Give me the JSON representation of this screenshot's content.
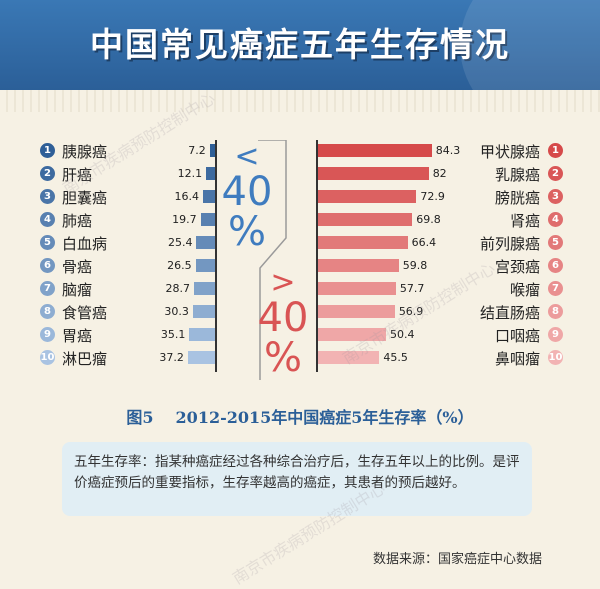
{
  "title": "中国常见癌症五年生存情况",
  "low_label": {
    "symbol": "<",
    "value": "40",
    "unit": "%"
  },
  "high_label": {
    "symbol": ">",
    "value": "40",
    "unit": "%"
  },
  "caption": {
    "fig": "图5",
    "text": "2012-2015年中国癌症5年生存率（%）"
  },
  "note": "五年生存率：指某种癌症经过各种综合治疗后，生存五年以上的比例。是评价癌症预后的重要指标，生存率越高的癌症，其患者的预后越好。",
  "source": "数据来源：国家癌症中心数据",
  "watermark": "南京市疾病预防控制中心",
  "colors": {
    "blue_dark": "#2f5f97",
    "blue_light": "#a9c3e2",
    "red_dark": "#d64a4a",
    "red_light": "#f2b3b3",
    "header": "#2b5f98"
  },
  "chart_data": [
    {
      "type": "bar",
      "orientation": "horizontal",
      "group": "<40%",
      "categories": [
        "胰腺癌",
        "肝癌",
        "胆囊癌",
        "肺癌",
        "白血病",
        "骨癌",
        "脑瘤",
        "食管癌",
        "胃癌",
        "淋巴瘤"
      ],
      "values": [
        7.2,
        12.1,
        16.4,
        19.7,
        25.4,
        26.5,
        28.7,
        30.3,
        35.1,
        37.2
      ],
      "ranks": [
        "1",
        "2",
        "3",
        "4",
        "5",
        "6",
        "7",
        "8",
        "9",
        "10"
      ]
    },
    {
      "type": "bar",
      "orientation": "horizontal",
      "group": ">40%",
      "categories": [
        "甲状腺癌",
        "乳腺癌",
        "膀胱癌",
        "肾癌",
        "前列腺癌",
        "宫颈癌",
        "喉瘤",
        "结直肠癌",
        "口咽癌",
        "鼻咽瘤"
      ],
      "values": [
        84.3,
        82,
        72.9,
        69.8,
        66.4,
        59.8,
        57.7,
        56.9,
        50.4,
        45.5
      ],
      "ranks": [
        "1",
        "2",
        "3",
        "4",
        "5",
        "6",
        "7",
        "8",
        "9",
        "10"
      ]
    }
  ]
}
